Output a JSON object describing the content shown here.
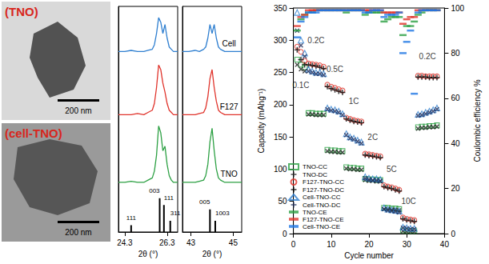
{
  "images": [
    {
      "label": "(TNO)",
      "scale_bar": "200 nm"
    },
    {
      "label": "(cell-TNO)",
      "scale_bar": "200 nm"
    }
  ],
  "chart_data": [
    {
      "type": "line",
      "xlabel": "2θ (°)",
      "ylim": [
        0,
        100
      ],
      "tick_labels": "x",
      "panels": [
        {
          "xlim": [
            24.0,
            26.8
          ],
          "xticks": [
            24.3,
            26.3
          ],
          "x": [
            24.0,
            24.3,
            24.6,
            24.9,
            25.2,
            25.4,
            25.6,
            25.7,
            25.8,
            25.9,
            26.0,
            26.1,
            26.2,
            26.3,
            26.4,
            26.5,
            26.6,
            26.8
          ],
          "series": [
            {
              "name": "Cell",
              "color": "#2f7fd0",
              "values": [
                80,
                80,
                80.5,
                80,
                80,
                80.5,
                81,
                83,
                88,
                95,
                93,
                88,
                92,
                86,
                82,
                81,
                80,
                80
              ]
            },
            {
              "name": "F127",
              "color": "#e0342c",
              "values": [
                52,
                52,
                52,
                52.5,
                52,
                53,
                54,
                57,
                64,
                74,
                72,
                66,
                62,
                57,
                54,
                53,
                52,
                52
              ]
            },
            {
              "name": "TNO",
              "color": "#2ca043",
              "values": [
                22,
                22,
                22.5,
                22,
                22,
                23,
                24,
                27,
                34,
                47,
                44,
                36,
                38,
                30,
                25,
                23,
                22,
                22
              ]
            }
          ],
          "reference": {
            "color": "#000000",
            "x": [
              24.6,
              25.95,
              26.15,
              26.45
            ],
            "values": [
              3,
              15,
              12,
              5
            ],
            "labels": [
              "111",
              "003",
              "111",
              "311"
            ]
          }
        },
        {
          "xlim": [
            42.6,
            45.4
          ],
          "xticks": [
            43,
            45
          ],
          "x": [
            42.6,
            42.9,
            43.2,
            43.4,
            43.6,
            43.7,
            43.8,
            43.9,
            44.0,
            44.1,
            44.2,
            44.3,
            44.4,
            44.6,
            44.8,
            45.0,
            45.2,
            45.4
          ],
          "series": [
            {
              "name": "Cell",
              "color": "#2f7fd0",
              "values": [
                80,
                80,
                80.5,
                80,
                81,
                82,
                86,
                92,
                88,
                92,
                86,
                82,
                81,
                80,
                80,
                80,
                80,
                80
              ]
            },
            {
              "name": "F127",
              "color": "#e0342c",
              "values": [
                52,
                52,
                52,
                52.5,
                53,
                55,
                60,
                68,
                72,
                64,
                58,
                54,
                53,
                52,
                52,
                52,
                52,
                52
              ]
            },
            {
              "name": "TNO",
              "color": "#2ca043",
              "values": [
                22,
                22,
                22,
                22.5,
                23,
                25,
                30,
                40,
                46,
                36,
                28,
                24,
                23,
                22,
                22,
                22,
                22,
                22
              ]
            }
          ],
          "reference": {
            "color": "#000000",
            "x": [
              43.9,
              44.15
            ],
            "values": [
              10,
              5
            ],
            "labels": [
              "005",
              "1003"
            ]
          }
        }
      ]
    },
    {
      "type": "scatter",
      "xlabel": "Cycle number",
      "ylabel": "Capacity (mAhg⁻¹)",
      "y2label": "Coulombic efficiency %",
      "xlim": [
        0,
        40
      ],
      "xticks": [
        0,
        10,
        20,
        30,
        40
      ],
      "ylim": [
        0,
        350
      ],
      "yticks": [
        0,
        50,
        100,
        150,
        200,
        250,
        300,
        350
      ],
      "y2lim": [
        0,
        100
      ],
      "y2ticks": [
        0,
        20,
        40,
        60,
        80,
        100
      ],
      "legend": "lower left",
      "x": [
        1,
        2,
        3,
        4,
        5,
        6,
        7,
        8,
        9,
        10,
        11,
        12,
        13,
        14,
        15,
        16,
        17,
        18,
        19,
        20,
        21,
        22,
        23,
        24,
        25,
        26,
        27,
        28,
        29,
        30,
        31,
        32,
        33,
        34,
        35,
        36,
        37,
        38
      ],
      "series": [
        {
          "name": "TNO-CC",
          "color": "#2ca043",
          "marker": "square",
          "values": [
            270,
            262,
            258,
            187,
            187,
            186,
            186,
            186,
            130,
            129,
            129,
            128,
            128,
            103,
            102,
            102,
            101,
            101,
            85,
            84,
            84,
            83,
            83,
            40,
            40,
            39,
            39,
            38,
            5,
            4,
            4,
            4,
            165,
            166,
            166,
            167,
            167,
            168
          ]
        },
        {
          "name": "TNO-DC",
          "color": "#222222",
          "marker": "x",
          "values": [
            262,
            255,
            252,
            185,
            185,
            184,
            184,
            184,
            128,
            127,
            127,
            126,
            126,
            101,
            100,
            100,
            99,
            99,
            83,
            82,
            82,
            81,
            81,
            38,
            38,
            37,
            37,
            36,
            4,
            3,
            3,
            3,
            163,
            164,
            164,
            165,
            165,
            166
          ]
        },
        {
          "name": "F127-TNO-CC",
          "color": "#e0342c",
          "marker": "circle",
          "values": [
            290,
            282,
            268,
            264,
            263,
            262,
            261,
            259,
            231,
            228,
            226,
            224,
            222,
            180,
            178,
            176,
            175,
            174,
            124,
            123,
            122,
            121,
            120,
            75,
            73,
            72,
            70,
            68,
            25,
            23,
            22,
            21,
            245,
            245,
            244,
            244,
            244,
            244
          ]
        },
        {
          "name": "F127-TNO-DC",
          "color": "#000000",
          "marker": "plus",
          "values": [
            285,
            270,
            262,
            262,
            261,
            260,
            258,
            256,
            228,
            225,
            223,
            221,
            219,
            178,
            176,
            174,
            173,
            172,
            122,
            121,
            120,
            119,
            118,
            73,
            71,
            70,
            68,
            66,
            23,
            21,
            20,
            19,
            243,
            243,
            243,
            242,
            242,
            242
          ]
        },
        {
          "name": "Cell-TNO-CC",
          "color": "#2f7fd0",
          "marker": "triangle",
          "values": [
            343,
            300,
            280,
            255,
            252,
            250,
            250,
            248,
            195,
            193,
            192,
            190,
            186,
            155,
            150,
            148,
            145,
            142,
            88,
            86,
            85,
            85,
            84,
            40,
            38,
            37,
            36,
            35,
            10,
            9,
            8,
            8,
            185,
            186,
            188,
            190,
            192,
            195
          ]
        },
        {
          "name": "Cell-TNO-DC",
          "color": "#1f2d5a",
          "marker": "x",
          "values": [
            315,
            292,
            275,
            252,
            250,
            248,
            248,
            246,
            193,
            191,
            190,
            188,
            184,
            153,
            148,
            146,
            143,
            140,
            86,
            84,
            83,
            83,
            82,
            38,
            36,
            35,
            34,
            33,
            9,
            8,
            7,
            7,
            183,
            184,
            186,
            188,
            190,
            193
          ]
        },
        {
          "name": "TNO-CE",
          "color": "#2ca043",
          "marker": "dash",
          "axis": "y2",
          "values": [
            90,
            95,
            97,
            98,
            98,
            99,
            99,
            99,
            99,
            99,
            99,
            99,
            99,
            98,
            99,
            99,
            99,
            99,
            97,
            98,
            98,
            98,
            98,
            94,
            95,
            96,
            96,
            96,
            88,
            92,
            92,
            94,
            97,
            98,
            99,
            99,
            99,
            99
          ]
        },
        {
          "name": "F127-TNO-CE",
          "color": "#e0342c",
          "marker": "dash",
          "axis": "y2",
          "values": [
            92,
            96,
            97,
            99,
            99,
            99,
            99,
            99,
            99,
            99,
            99,
            99,
            99,
            99,
            99,
            99,
            99,
            99,
            99,
            99,
            99,
            99,
            99,
            98,
            98,
            98,
            98,
            98,
            93,
            95,
            96,
            96,
            99,
            99,
            99,
            99,
            99,
            99
          ]
        },
        {
          "name": "Cell-TNO-CE",
          "color": "#1f77e4",
          "marker": "dash",
          "axis": "y2",
          "values": [
            87,
            94,
            96,
            98,
            98,
            98,
            99,
            99,
            99,
            99,
            99,
            99,
            99,
            99,
            99,
            99,
            99,
            99,
            98,
            98,
            99,
            99,
            99,
            96,
            97,
            97,
            97,
            98,
            80,
            85,
            90,
            62,
            98,
            99,
            99,
            99,
            99,
            99
          ]
        }
      ],
      "annotations": [
        {
          "text": "0.1C",
          "x": 2,
          "y": 230
        },
        {
          "text": "0.2C",
          "x": 6,
          "y": 300
        },
        {
          "text": "0.5C",
          "x": 11,
          "y": 255
        },
        {
          "text": "1C",
          "x": 16,
          "y": 205
        },
        {
          "text": "2C",
          "x": 21,
          "y": 150
        },
        {
          "text": "5C",
          "x": 26,
          "y": 100
        },
        {
          "text": "10C",
          "x": 30.5,
          "y": 50
        },
        {
          "text": "0.2C",
          "x": 35.5,
          "y": 275
        }
      ]
    }
  ]
}
